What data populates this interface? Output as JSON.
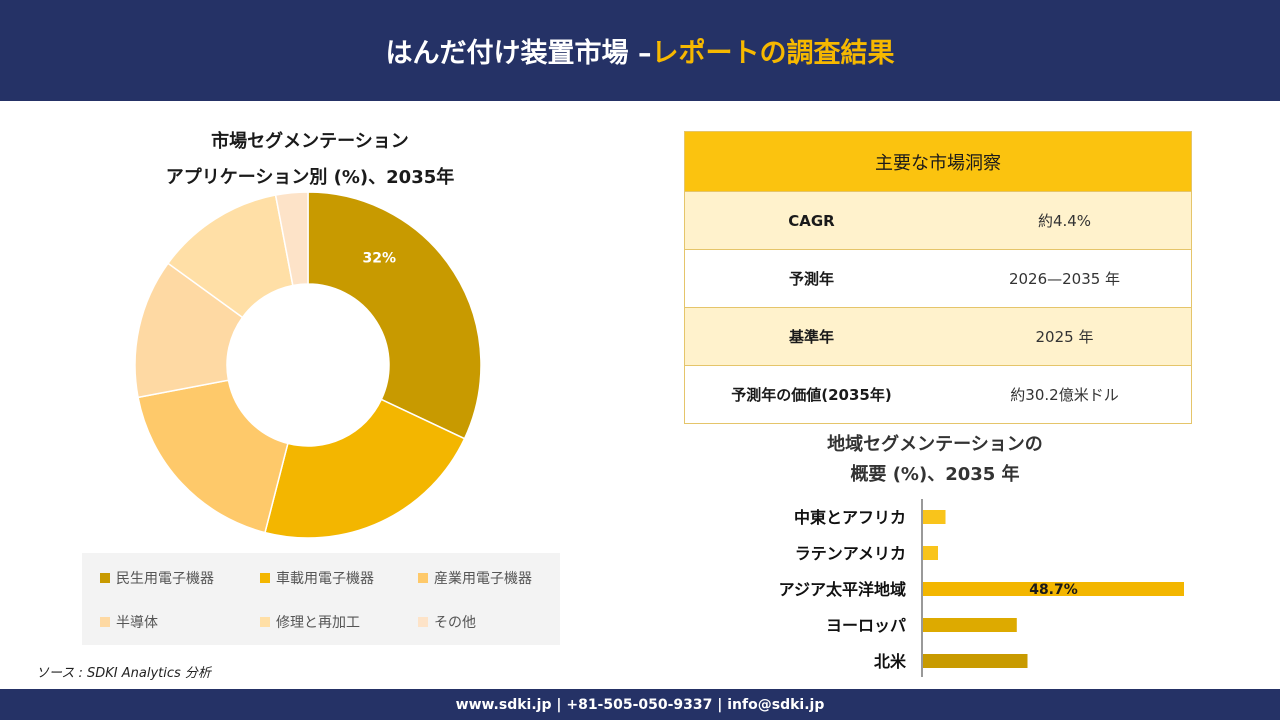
{
  "header": {
    "title_part1": "はんだ付け装置市場 –",
    "title_part2": "レポートの調査結果"
  },
  "donut": {
    "title_line1": "市場セグメンテーション",
    "title_line2": "アプリケーション別 (%)、2035年"
  },
  "legend": [
    {
      "label": "民生用電子機器",
      "color": "#c89a00"
    },
    {
      "label": "車載用電子機器",
      "color": "#f3b600"
    },
    {
      "label": "産業用電子機器",
      "color": "#fec96a"
    },
    {
      "label": "半導体",
      "color": "#fed9a3"
    },
    {
      "label": "修理と再加工",
      "color": "#ffdfa6"
    },
    {
      "label": "その他",
      "color": "#fde3c8"
    }
  ],
  "source": "ソース : SDKI Analytics 分析",
  "insights": {
    "title": "主要な市場洞察",
    "rows": [
      {
        "key": "CAGR",
        "value": "約4.4%"
      },
      {
        "key": "予測年",
        "value": "2026—2035 年"
      },
      {
        "key": "基準年",
        "value": "2025 年"
      },
      {
        "key": "予測年の価値(2035年)",
        "value": "約30.2億米ドル"
      }
    ]
  },
  "region": {
    "title_line1": "地域セグメンテーションの",
    "title_line2": "概要 (%)、2035 年"
  },
  "footer": {
    "text": "www.sdki.jp | +81-505-050-9337 | info@sdki.jp"
  },
  "chart_data": [
    {
      "type": "pie",
      "title": "市場セグメンテーション アプリケーション別 (%)、2035年",
      "categories": [
        "民生用電子機器",
        "車載用電子機器",
        "産業用電子機器",
        "半導体",
        "修理と再加工",
        "その他"
      ],
      "values": [
        32,
        22,
        18,
        13,
        12,
        3
      ],
      "data_labels": [
        "32%",
        "",
        "",
        "",
        "",
        ""
      ],
      "colors": [
        "#c89a00",
        "#f3b600",
        "#fec96a",
        "#fed9a3",
        "#ffdfa6",
        "#fde3c8"
      ],
      "legend": "bottom"
    },
    {
      "type": "bar",
      "orientation": "horizontal",
      "title": "地域セグメンテーションの 概要 (%)、2035 年",
      "categories": [
        "中東とアフリカ",
        "ラテンアメリカ",
        "アジア太平洋地域",
        "ヨーロッパ",
        "北米"
      ],
      "values": [
        4.2,
        2.8,
        48.7,
        17.5,
        19.5
      ],
      "data_labels": [
        "",
        "",
        "48.7%",
        "",
        ""
      ],
      "colors": [
        "#f9c41b",
        "#f9c41b",
        "#f3b600",
        "#ddaa00",
        "#c89a00"
      ]
    }
  ]
}
